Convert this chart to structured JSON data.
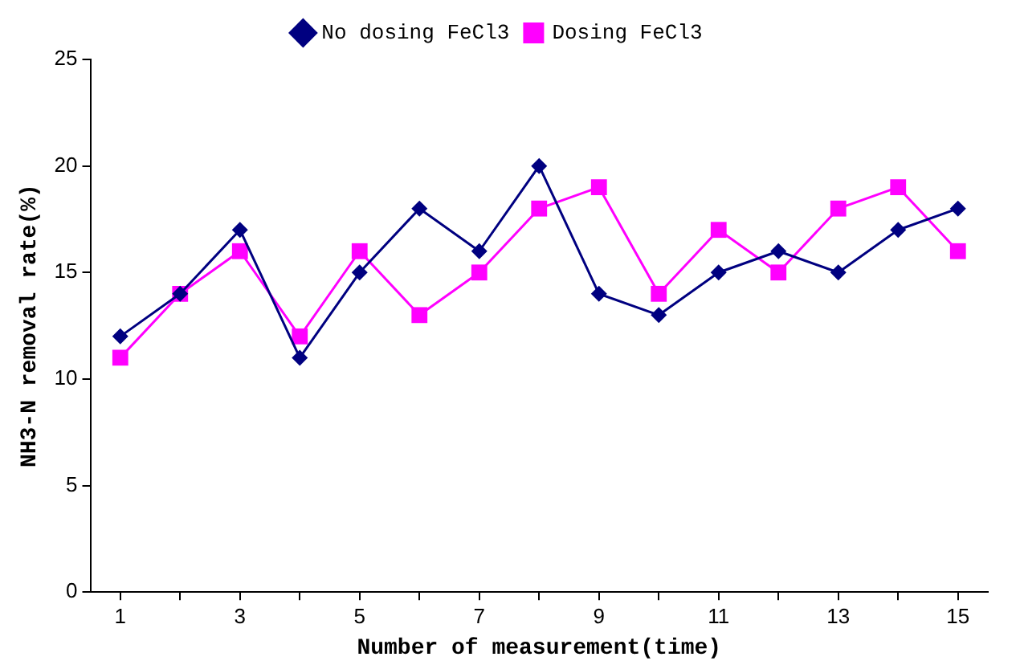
{
  "chart_data": {
    "type": "line",
    "xlabel": "Number of measurement(time)",
    "ylabel": "NH3-N removal rate(%)",
    "x": [
      1,
      2,
      3,
      4,
      5,
      6,
      7,
      8,
      9,
      10,
      11,
      12,
      13,
      14,
      15
    ],
    "series": [
      {
        "name": "No dosing FeCl3",
        "color": "#000080",
        "marker": "diamond",
        "values": [
          12,
          14,
          17,
          11,
          15,
          18,
          16,
          20,
          14,
          13,
          15,
          16,
          15,
          17,
          18
        ]
      },
      {
        "name": "Dosing FeCl3",
        "color": "#ff00ff",
        "marker": "square",
        "values": [
          11,
          14,
          16,
          12,
          16,
          13,
          15,
          18,
          19,
          14,
          17,
          15,
          18,
          19,
          16
        ]
      }
    ],
    "xlim": [
      0.5,
      15.5
    ],
    "xticks": [
      1,
      {
        "value": 2,
        "label": null
      },
      3,
      {
        "value": 4,
        "label": null
      },
      5,
      {
        "value": 6,
        "label": null
      },
      7,
      {
        "value": 8,
        "label": null
      },
      9,
      {
        "value": 10,
        "label": null
      },
      11,
      {
        "value": 12,
        "label": null
      },
      13,
      {
        "value": 14,
        "label": null
      },
      15
    ],
    "ylim": [
      0,
      25
    ],
    "yticks": [
      0,
      5,
      10,
      15,
      20,
      25
    ],
    "grid": false,
    "legend": "top",
    "line_style": "solid"
  }
}
